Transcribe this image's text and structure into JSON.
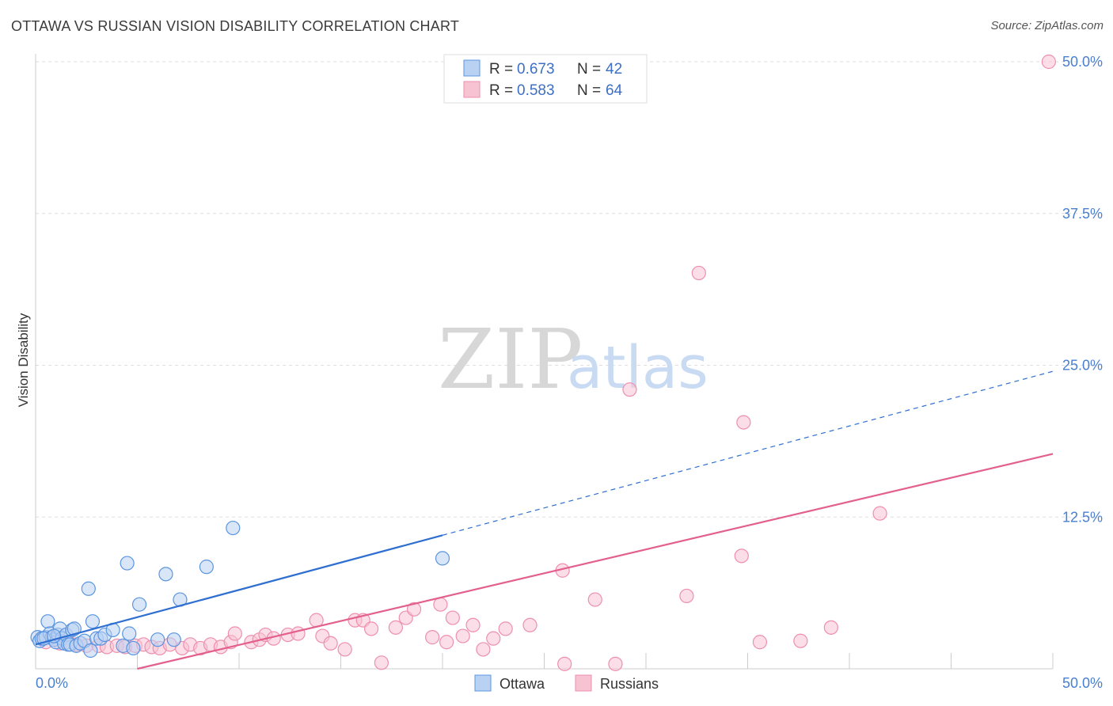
{
  "title": "OTTAWA VS RUSSIAN VISION DISABILITY CORRELATION CHART",
  "source": "Source: ZipAtlas.com",
  "watermark": {
    "zip": "ZIP",
    "atlas": "atlas"
  },
  "legend_top": {
    "rows": [
      {
        "r_label": "R = ",
        "r_value": "0.673",
        "n_label": "N = ",
        "n_value": "42",
        "color": "#a9c8f0"
      },
      {
        "r_label": "R = ",
        "r_value": "0.583",
        "n_label": "N = ",
        "n_value": "64",
        "color": "#f6b8cb"
      }
    ]
  },
  "chart_data": {
    "type": "scatter",
    "title": "OTTAWA VS RUSSIAN VISION DISABILITY CORRELATION CHART",
    "xlabel": "",
    "ylabel": "Vision Disability",
    "xlim": [
      0,
      50
    ],
    "ylim": [
      0,
      50
    ],
    "x_tick_labels": [
      "0.0%",
      "50.0%"
    ],
    "y_ticks": [
      12.5,
      25.0,
      37.5,
      50.0
    ],
    "y_tick_labels": [
      "12.5%",
      "25.0%",
      "37.5%",
      "50.0%"
    ],
    "grid": true,
    "legend_position": "bottom-center",
    "series": [
      {
        "name": "Ottawa",
        "color": "#5b95e0",
        "fill": "#b9d2f3",
        "trend": {
          "x0": 0,
          "y0": 2.0,
          "x1": 50,
          "y1": 24.5,
          "solid_until": 20,
          "line_color": "#2f6fd1"
        },
        "points": [
          [
            0.1,
            2.6
          ],
          [
            0.2,
            2.3
          ],
          [
            0.3,
            2.5
          ],
          [
            0.5,
            2.6
          ],
          [
            0.6,
            3.9
          ],
          [
            0.7,
            2.9
          ],
          [
            0.8,
            2.6
          ],
          [
            0.9,
            2.4
          ],
          [
            1.0,
            2.2
          ],
          [
            1.1,
            2.8
          ],
          [
            1.2,
            3.3
          ],
          [
            1.3,
            2.5
          ],
          [
            1.4,
            2.1
          ],
          [
            1.5,
            2.8
          ],
          [
            1.6,
            2.0
          ],
          [
            1.7,
            2.0
          ],
          [
            1.8,
            3.2
          ],
          [
            1.9,
            3.3
          ],
          [
            2.0,
            1.9
          ],
          [
            2.2,
            2.1
          ],
          [
            2.4,
            2.3
          ],
          [
            2.6,
            6.6
          ],
          [
            2.7,
            1.5
          ],
          [
            2.8,
            3.9
          ],
          [
            3.0,
            2.5
          ],
          [
            3.2,
            2.5
          ],
          [
            3.4,
            2.8
          ],
          [
            3.8,
            3.2
          ],
          [
            4.3,
            1.9
          ],
          [
            4.5,
            8.7
          ],
          [
            4.6,
            2.9
          ],
          [
            4.8,
            1.7
          ],
          [
            5.1,
            5.3
          ],
          [
            6.0,
            2.4
          ],
          [
            6.4,
            7.8
          ],
          [
            6.8,
            2.4
          ],
          [
            7.1,
            5.7
          ],
          [
            8.4,
            8.4
          ],
          [
            9.7,
            11.6
          ],
          [
            20.0,
            9.1
          ],
          [
            0.4,
            2.5
          ],
          [
            0.9,
            2.7
          ]
        ]
      },
      {
        "name": "Russians",
        "color": "#ee8fae",
        "fill": "#f7c3d3",
        "trend": {
          "x0": 5,
          "y0": 0.0,
          "x1": 50,
          "y1": 17.7,
          "line_color": "#e35f8e"
        },
        "points": [
          [
            0.3,
            2.5
          ],
          [
            0.5,
            2.2
          ],
          [
            0.8,
            2.6
          ],
          [
            1.2,
            2.1
          ],
          [
            1.6,
            2.2
          ],
          [
            2.0,
            2.0
          ],
          [
            2.5,
            1.9
          ],
          [
            3.1,
            1.9
          ],
          [
            3.5,
            1.8
          ],
          [
            4.0,
            1.9
          ],
          [
            4.4,
            1.8
          ],
          [
            4.9,
            1.9
          ],
          [
            5.3,
            2.0
          ],
          [
            5.7,
            1.8
          ],
          [
            6.1,
            1.7
          ],
          [
            6.6,
            2.0
          ],
          [
            7.2,
            1.7
          ],
          [
            7.6,
            2.0
          ],
          [
            8.1,
            1.7
          ],
          [
            8.6,
            2.0
          ],
          [
            9.1,
            1.8
          ],
          [
            9.6,
            2.2
          ],
          [
            9.8,
            2.9
          ],
          [
            10.6,
            2.2
          ],
          [
            11.0,
            2.4
          ],
          [
            11.3,
            2.8
          ],
          [
            11.7,
            2.5
          ],
          [
            12.4,
            2.8
          ],
          [
            12.9,
            2.9
          ],
          [
            13.8,
            4.0
          ],
          [
            14.1,
            2.7
          ],
          [
            14.5,
            2.1
          ],
          [
            15.2,
            1.6
          ],
          [
            15.7,
            4.0
          ],
          [
            16.1,
            4.0
          ],
          [
            16.5,
            3.3
          ],
          [
            17.0,
            0.5
          ],
          [
            17.7,
            3.4
          ],
          [
            18.2,
            4.2
          ],
          [
            18.6,
            4.9
          ],
          [
            19.5,
            2.6
          ],
          [
            19.9,
            5.3
          ],
          [
            20.2,
            2.2
          ],
          [
            20.5,
            4.2
          ],
          [
            21.0,
            2.7
          ],
          [
            21.5,
            3.6
          ],
          [
            22.0,
            1.6
          ],
          [
            22.5,
            2.5
          ],
          [
            23.1,
            3.3
          ],
          [
            24.3,
            3.6
          ],
          [
            25.9,
            8.1
          ],
          [
            26.0,
            0.4
          ],
          [
            27.5,
            5.7
          ],
          [
            28.5,
            0.4
          ],
          [
            29.2,
            23.0
          ],
          [
            32.0,
            6.0
          ],
          [
            32.6,
            32.6
          ],
          [
            34.7,
            9.3
          ],
          [
            34.8,
            20.3
          ],
          [
            35.6,
            2.2
          ],
          [
            37.6,
            2.3
          ],
          [
            39.1,
            3.4
          ],
          [
            41.5,
            12.8
          ],
          [
            49.8,
            50.0
          ]
        ]
      }
    ]
  }
}
